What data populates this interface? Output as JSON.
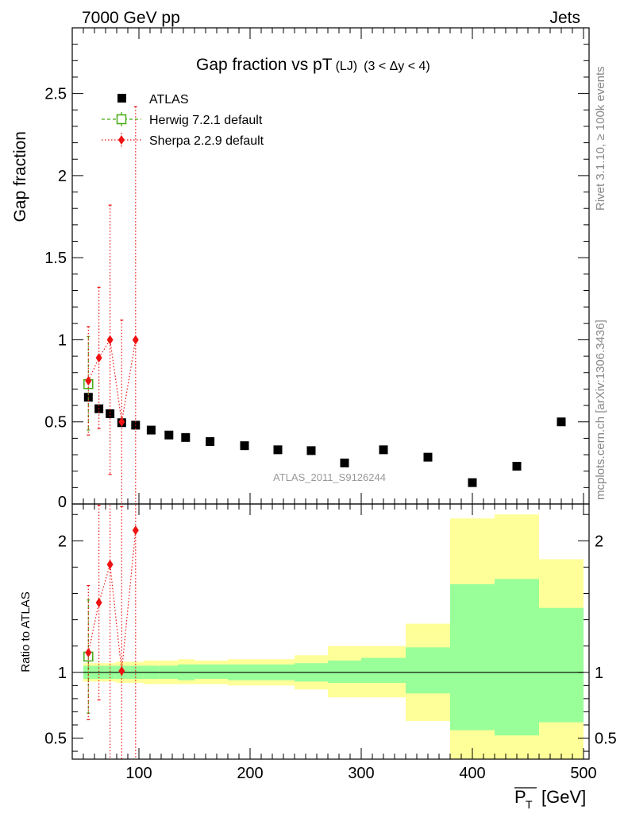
{
  "header": {
    "left": "7000 GeV pp",
    "right": "Jets"
  },
  "side_labels": {
    "rivet": "Rivet 3.1.10, ≥ 100k events",
    "mcplots": "mcplots.cern.ch [arXiv:1306.3436]"
  },
  "watermark": "ATLAS_2011_S9126244",
  "colors": {
    "atlas": "#000000",
    "herwig": "#44aa11",
    "sherpa": "#ee1111",
    "band_inner": "#99ff99",
    "band_outer": "#ffff99"
  },
  "chart_data": [
    {
      "type": "scatter",
      "title": "Gap fraction vs pT",
      "title_suffix": "(LJ)",
      "title_range": "(3 < Δy < 4)",
      "ylabel": "Gap fraction",
      "ylim": [
        0,
        2.9
      ],
      "yticks": [
        0.5,
        1,
        1.5,
        2,
        2.5
      ],
      "ytick_labels": [
        "0.5",
        "1",
        "1.5",
        "2",
        "2.5"
      ],
      "ytick_zero_label": "0",
      "xlim": [
        40,
        505
      ],
      "legend_position": "top-left",
      "series": [
        {
          "name": "ATLAS",
          "marker": "square",
          "x": [
            54.5,
            64,
            74,
            84.5,
            97,
            111,
            127,
            142,
            164,
            195,
            225,
            255,
            285,
            320,
            360,
            400,
            440,
            480
          ],
          "y": [
            0.65,
            0.58,
            0.55,
            0.495,
            0.48,
            0.45,
            0.42,
            0.405,
            0.38,
            0.355,
            0.33,
            0.325,
            0.25,
            0.33,
            0.285,
            0.13,
            0.23,
            0.5
          ]
        },
        {
          "name": "Herwig 7.2.1 default",
          "marker": "open-square",
          "x": [
            54.5
          ],
          "y": [
            0.73
          ],
          "yerr_low": [
            0.28
          ],
          "yerr_high": [
            0.29
          ]
        },
        {
          "name": "Sherpa 2.2.9 default",
          "marker": "diamond",
          "x": [
            54.5,
            64,
            74,
            84.5,
            97
          ],
          "y": [
            0.75,
            0.89,
            1.0,
            0.5,
            1.0
          ],
          "yerr_low": [
            0.33,
            0.43,
            0.82,
            0.5,
            1.0
          ],
          "yerr_high": [
            0.33,
            0.43,
            0.82,
            0.62,
            1.42
          ]
        }
      ]
    },
    {
      "type": "scatter",
      "ylabel": "Ratio to ATLAS",
      "xlabel": "P",
      "xlabel_sub": "T",
      "xlabel_unit": "[GeV]",
      "ylim": [
        0.34,
        2.28
      ],
      "yticks": [
        0.5,
        1,
        2
      ],
      "ytick_labels": [
        "0.5",
        "1",
        "2"
      ],
      "xticks": [
        100,
        200,
        300,
        400,
        500
      ],
      "xtick_labels": [
        "100",
        "200",
        "300",
        "400",
        "500"
      ],
      "bands": [
        {
          "x0": 50,
          "x1": 59,
          "inner": [
            0.95,
            1.05
          ],
          "outer": [
            0.93,
            1.07
          ]
        },
        {
          "x0": 59,
          "x1": 69,
          "inner": [
            0.95,
            1.05
          ],
          "outer": [
            0.93,
            1.07
          ]
        },
        {
          "x0": 69,
          "x1": 79,
          "inner": [
            0.95,
            1.05
          ],
          "outer": [
            0.93,
            1.07
          ]
        },
        {
          "x0": 79,
          "x1": 90,
          "inner": [
            0.95,
            1.05
          ],
          "outer": [
            0.92,
            1.08
          ]
        },
        {
          "x0": 90,
          "x1": 104,
          "inner": [
            0.95,
            1.05
          ],
          "outer": [
            0.92,
            1.08
          ]
        },
        {
          "x0": 104,
          "x1": 118,
          "inner": [
            0.95,
            1.05
          ],
          "outer": [
            0.91,
            1.09
          ]
        },
        {
          "x0": 118,
          "x1": 135,
          "inner": [
            0.95,
            1.05
          ],
          "outer": [
            0.91,
            1.09
          ]
        },
        {
          "x0": 135,
          "x1": 150,
          "inner": [
            0.94,
            1.06
          ],
          "outer": [
            0.91,
            1.1
          ]
        },
        {
          "x0": 150,
          "x1": 180,
          "inner": [
            0.95,
            1.06
          ],
          "outer": [
            0.91,
            1.09
          ]
        },
        {
          "x0": 180,
          "x1": 210,
          "inner": [
            0.94,
            1.06
          ],
          "outer": [
            0.9,
            1.1
          ]
        },
        {
          "x0": 210,
          "x1": 240,
          "inner": [
            0.94,
            1.06
          ],
          "outer": [
            0.9,
            1.1
          ]
        },
        {
          "x0": 240,
          "x1": 270,
          "inner": [
            0.93,
            1.07
          ],
          "outer": [
            0.87,
            1.13
          ]
        },
        {
          "x0": 270,
          "x1": 300,
          "inner": [
            0.92,
            1.09
          ],
          "outer": [
            0.81,
            1.2
          ]
        },
        {
          "x0": 300,
          "x1": 340,
          "inner": [
            0.92,
            1.11
          ],
          "outer": [
            0.81,
            1.2
          ]
        },
        {
          "x0": 340,
          "x1": 380,
          "inner": [
            0.84,
            1.19
          ],
          "outer": [
            0.63,
            1.37
          ]
        },
        {
          "x0": 380,
          "x1": 420,
          "inner": [
            0.56,
            1.67
          ],
          "outer": [
            0.34,
            2.17
          ]
        },
        {
          "x0": 420,
          "x1": 460,
          "inner": [
            0.52,
            1.71
          ],
          "outer": [
            0.34,
            2.2
          ]
        },
        {
          "x0": 460,
          "x1": 500,
          "inner": [
            0.62,
            1.49
          ],
          "outer": [
            0.34,
            1.86
          ]
        }
      ],
      "series": [
        {
          "name": "Herwig 7.2.1 default",
          "x": [
            54.5
          ],
          "y": [
            1.12
          ],
          "yerr_low": [
            0.43
          ],
          "yerr_high": [
            0.43
          ]
        },
        {
          "name": "Sherpa 2.2.9 default",
          "x": [
            54.5,
            64,
            74,
            84.5,
            97
          ],
          "y": [
            1.15,
            1.53,
            1.82,
            1.01,
            2.08
          ],
          "yerr_low": [
            0.51,
            0.74,
            1.49,
            1.01,
            2.08
          ],
          "yerr_high": [
            0.51,
            0.74,
            1.49,
            1.25,
            2.9
          ]
        }
      ]
    }
  ]
}
